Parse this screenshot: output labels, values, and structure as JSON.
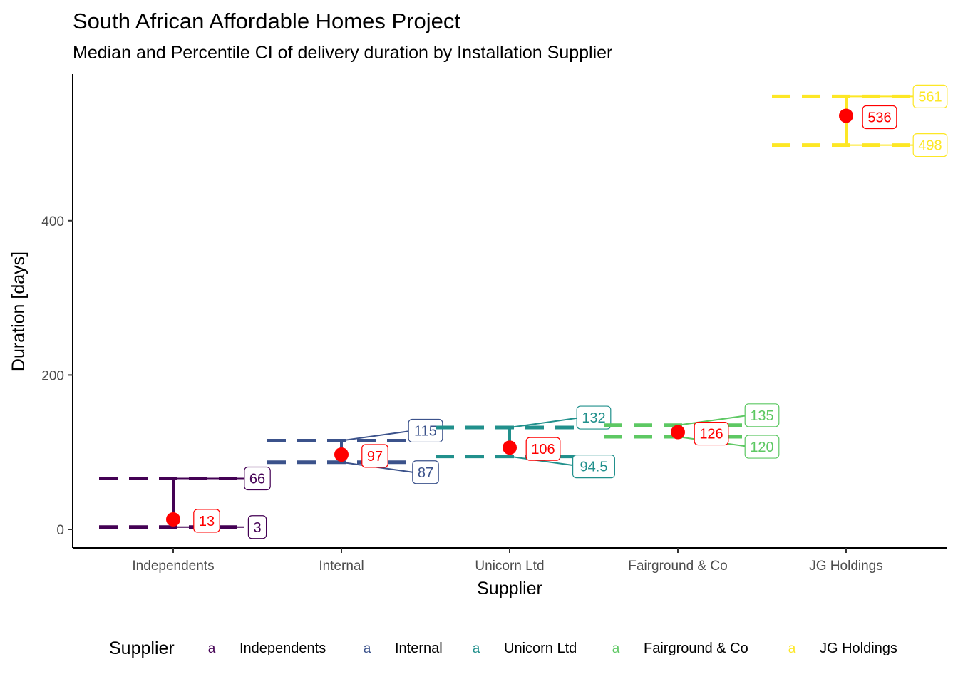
{
  "chart_data": {
    "type": "errorbar",
    "title": "South African Affordable Homes Project",
    "subtitle": "Median and Percentile CI of delivery duration by Installation Supplier",
    "xlabel": "Supplier",
    "ylabel": "Duration [days]",
    "yticks": [
      0,
      200,
      400
    ],
    "ylim": [
      -24,
      590
    ],
    "categories": [
      "Independents",
      "Internal",
      "Unicorn Ltd",
      "Fairground & Co",
      "JG Holdings"
    ],
    "series": [
      {
        "name": "Independents",
        "median": 13,
        "lower": 3,
        "upper": 66,
        "median_label": "13",
        "lower_label": "3",
        "upper_label": "66",
        "color": "#440154"
      },
      {
        "name": "Internal",
        "median": 97,
        "lower": 87,
        "upper": 115,
        "median_label": "97",
        "lower_label": "87",
        "upper_label": "115",
        "color": "#3B528B"
      },
      {
        "name": "Unicorn Ltd",
        "median": 106,
        "lower": 94.5,
        "upper": 132,
        "median_label": "106",
        "lower_label": "94.5",
        "upper_label": "132",
        "color": "#21908C"
      },
      {
        "name": "Fairground & Co",
        "median": 126,
        "lower": 120,
        "upper": 135,
        "median_label": "126",
        "lower_label": "120",
        "upper_label": "135",
        "color": "#5DC863"
      },
      {
        "name": "JG Holdings",
        "median": 536,
        "lower": 498,
        "upper": 561,
        "median_label": "536",
        "lower_label": "498",
        "upper_label": "561",
        "color": "#FDE725"
      }
    ],
    "median_color": "#FF0000",
    "legend": {
      "title": "Supplier",
      "key_glyph": "a",
      "position": "bottom"
    },
    "grid": false
  }
}
